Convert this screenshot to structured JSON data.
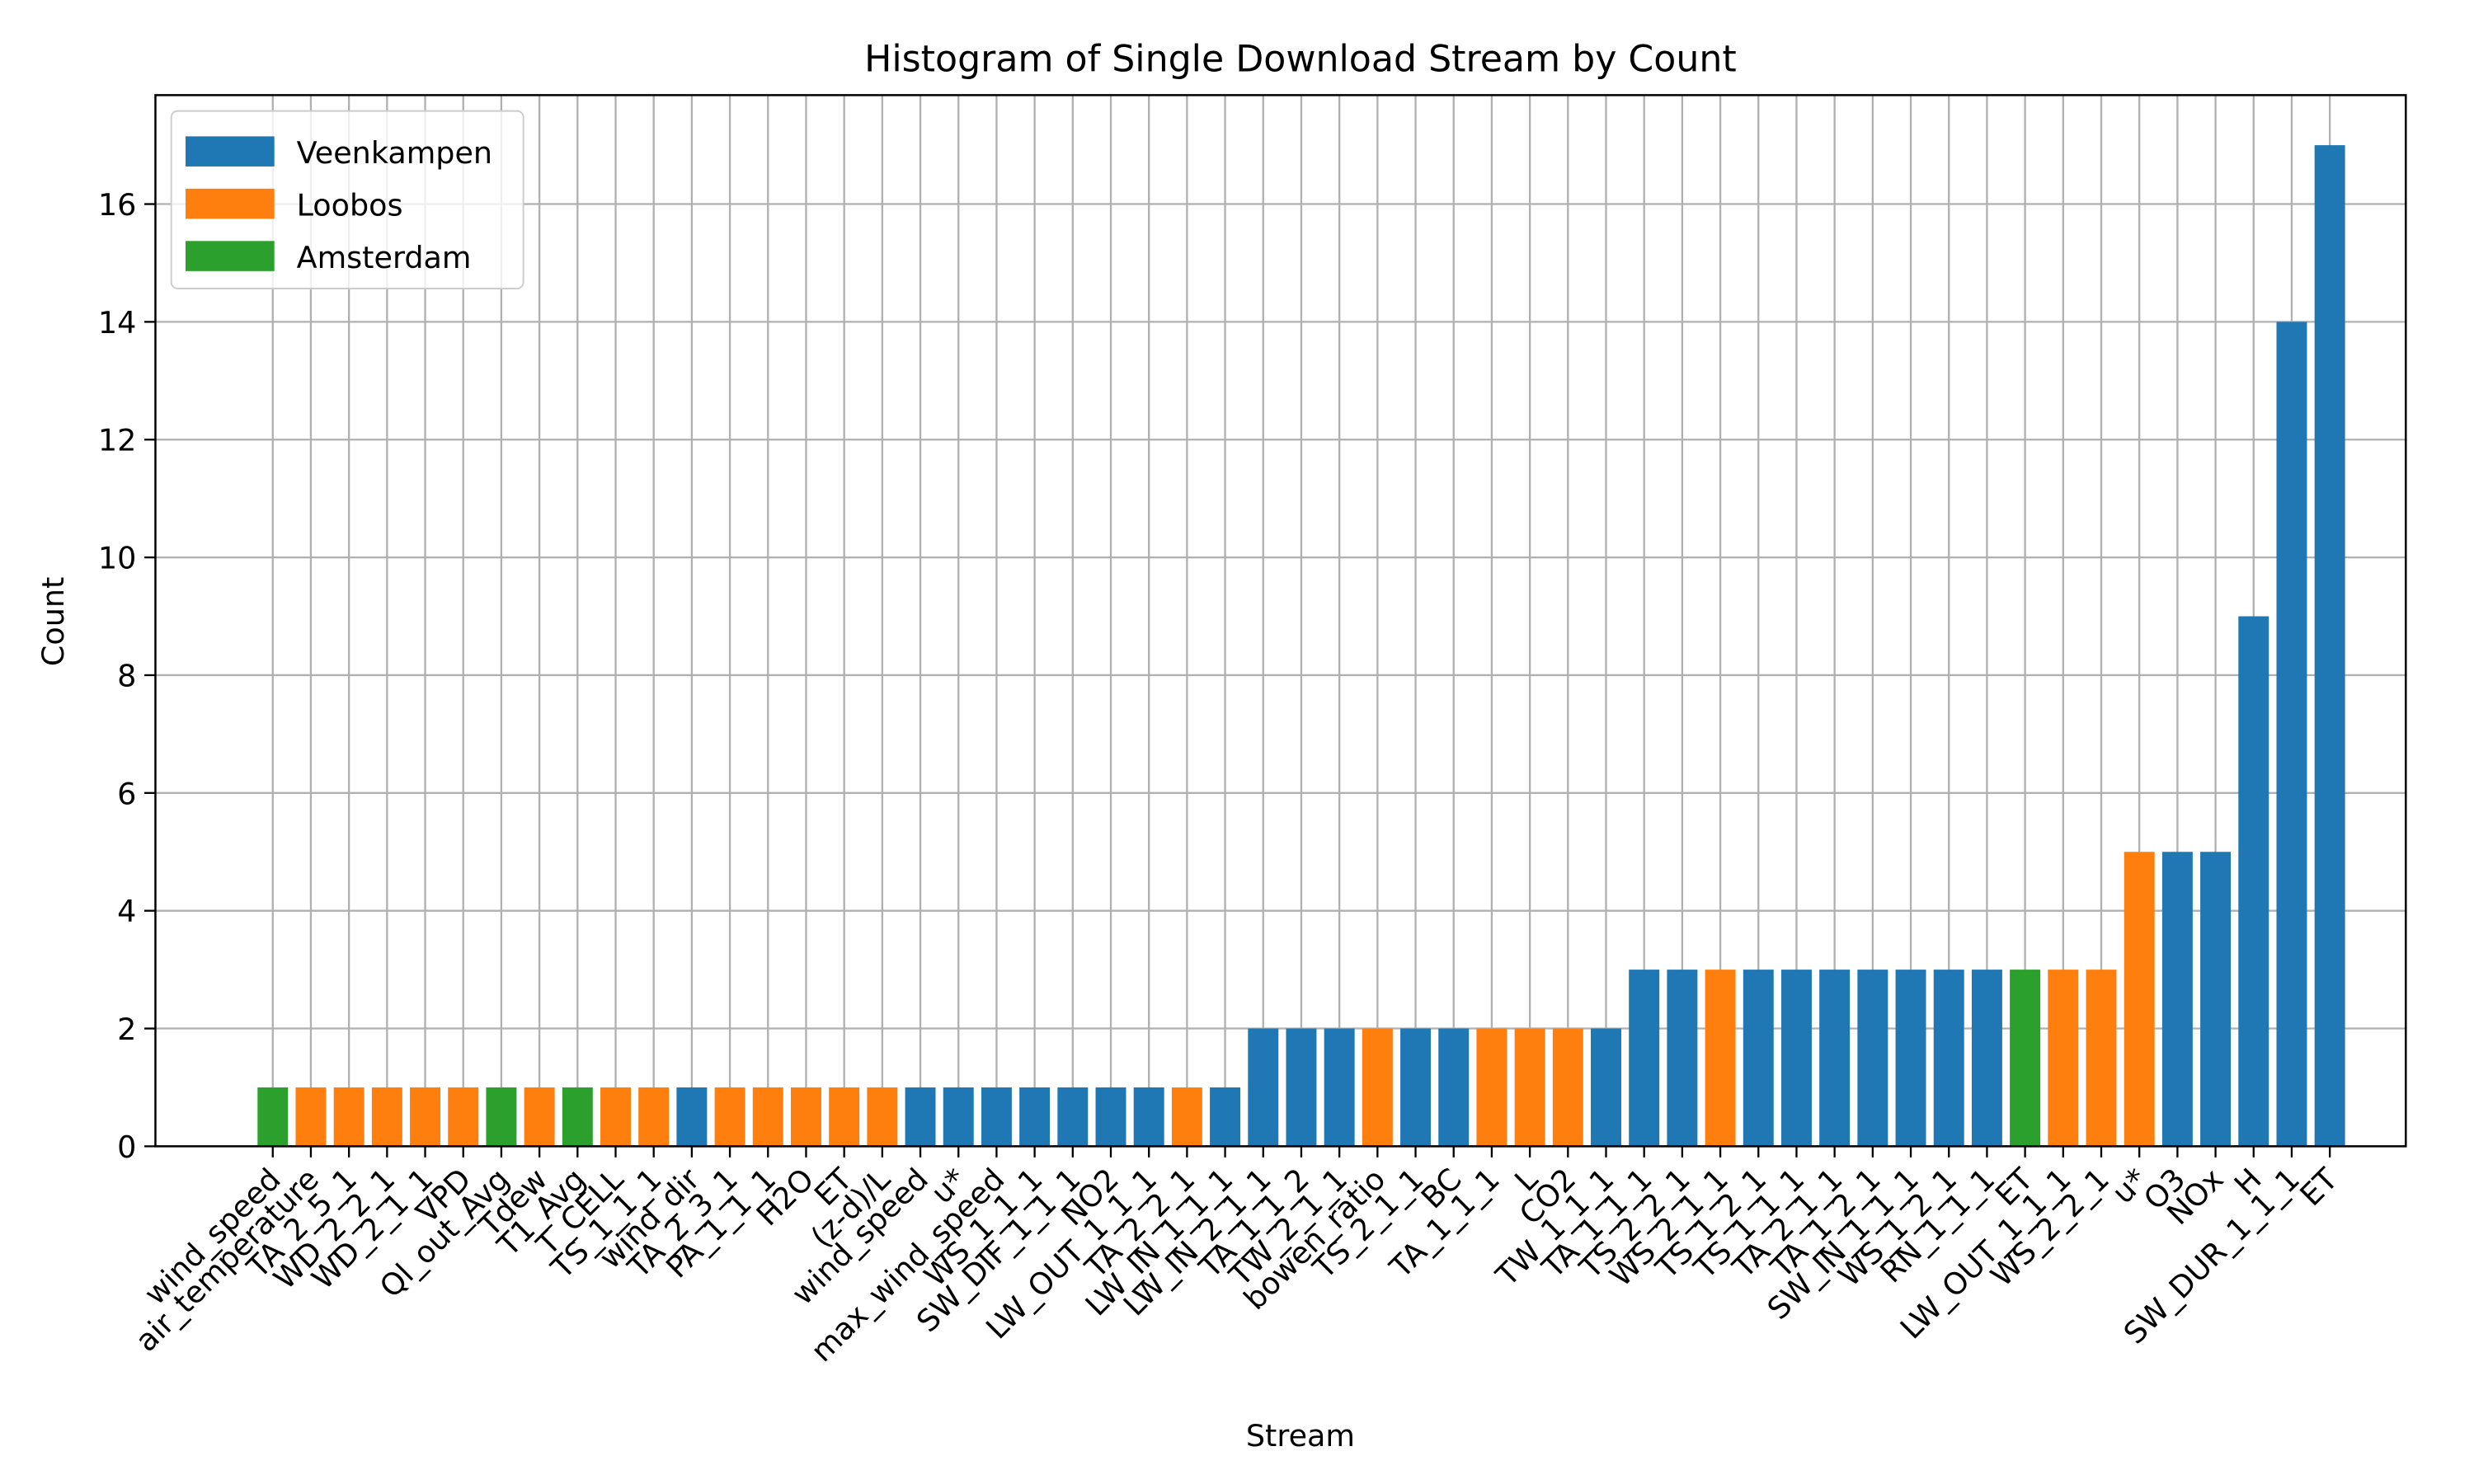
{
  "chart_data": {
    "type": "bar",
    "title": "Histogram of Single Download Stream by Count",
    "xlabel": "Stream",
    "ylabel": "Count",
    "categories": [
      "wind_speed",
      "air_temperature",
      "TA_2_5_1",
      "WD_2_2_1",
      "WD_2_1_1",
      "VPD",
      "Ql_out_Avg",
      "Tdew",
      "T1_Avg",
      "T_CELL",
      "TS_1_1_1",
      "wind_dir",
      "TA_2_3_1",
      "PA_1_1_1",
      "H2O",
      "ET",
      "(z-d)/L",
      "wind_speed",
      "u*",
      "max_wind_speed",
      "WS_1_1_1",
      "SW_DIF_1_1_1",
      "NO2",
      "LW_OUT_1_1_1",
      "TA_2_2_1",
      "LW_IN_1_1_1",
      "LW_IN_2_1_1",
      "TA_1_1_2",
      "TW_2_1_1",
      "bowen_ratio",
      "TS_2_1_1",
      "BC",
      "TA_1_1_1",
      "L",
      "CO2",
      "TW_1_1_1",
      "TA_1_1_1",
      "TS_2_2_1",
      "WS_2_1_1",
      "TS_1_2_1",
      "TS_1_1_1",
      "TA_2_1_1",
      "TA_1_2_1",
      "SW_IN_1_1_1",
      "WS_1_2_1",
      "RN_1_1_1",
      "ET",
      "LW_OUT_1_1_1",
      "WS_2_2_1",
      "u*",
      "O3",
      "NOx",
      "H",
      "SW_DUR_1_1_1",
      "ET"
    ],
    "series": [
      {
        "name": "Veenkampen",
        "color": "#1f77b4",
        "values": [
          null,
          null,
          null,
          null,
          null,
          null,
          null,
          null,
          null,
          null,
          null,
          1,
          null,
          null,
          null,
          null,
          null,
          1,
          1,
          1,
          1,
          1,
          1,
          1,
          null,
          1,
          2,
          2,
          2,
          null,
          2,
          2,
          null,
          null,
          null,
          2,
          3,
          3,
          null,
          3,
          3,
          3,
          3,
          3,
          3,
          3,
          null,
          null,
          null,
          null,
          5,
          5,
          9,
          14,
          17
        ]
      },
      {
        "name": "Loobos",
        "color": "#ff7f0e",
        "values": [
          null,
          1,
          1,
          1,
          1,
          1,
          null,
          1,
          null,
          1,
          1,
          null,
          1,
          1,
          1,
          1,
          1,
          null,
          null,
          null,
          null,
          null,
          null,
          null,
          1,
          null,
          null,
          null,
          null,
          2,
          null,
          null,
          2,
          2,
          2,
          null,
          null,
          null,
          3,
          null,
          null,
          null,
          null,
          null,
          null,
          null,
          null,
          3,
          3,
          5,
          null,
          null,
          null,
          null,
          null
        ]
      },
      {
        "name": "Amsterdam",
        "color": "#2ca02c",
        "values": [
          1,
          null,
          null,
          null,
          null,
          null,
          1,
          null,
          1,
          null,
          null,
          null,
          null,
          null,
          null,
          null,
          null,
          null,
          null,
          null,
          null,
          null,
          null,
          null,
          null,
          null,
          null,
          null,
          null,
          null,
          null,
          null,
          null,
          null,
          null,
          null,
          null,
          null,
          null,
          null,
          null,
          null,
          null,
          null,
          null,
          null,
          3,
          null,
          null,
          null,
          null,
          null,
          null,
          null,
          null
        ]
      }
    ],
    "ylim": [
      0,
      17.85
    ],
    "yticks": [
      0,
      2,
      4,
      6,
      8,
      10,
      12,
      14,
      16
    ],
    "grid": true,
    "legend": "upper left"
  }
}
